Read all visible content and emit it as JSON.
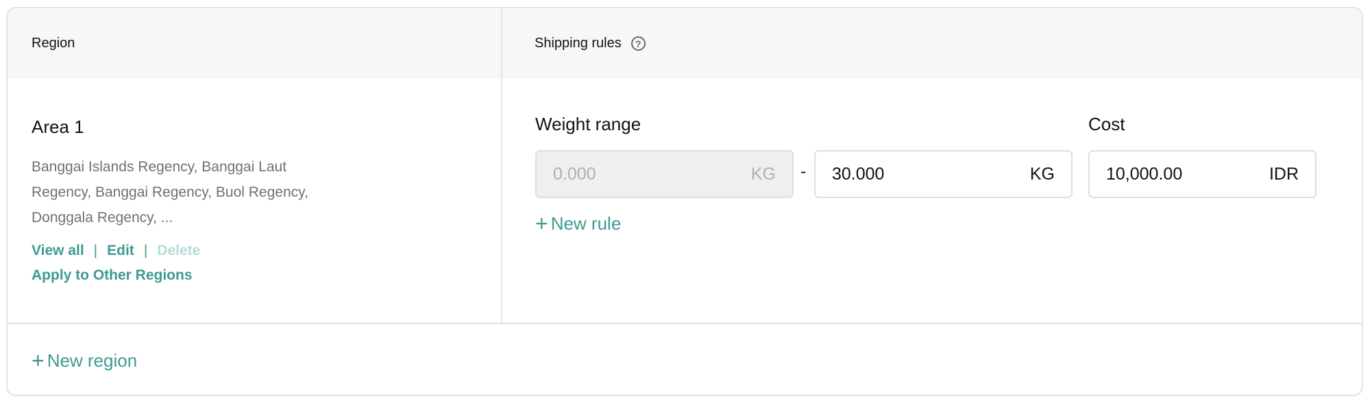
{
  "header": {
    "region": "Region",
    "shipping_rules": "Shipping rules",
    "help_icon": "question-circle-icon"
  },
  "region": {
    "title": "Area 1",
    "description": "Banggai Islands Regency, Banggai Laut Regency, Banggai Regency, Buol Regency, Donggala Regency, ...",
    "view_all": "View all",
    "separator": "|",
    "edit": "Edit",
    "delete": "Delete",
    "apply": "Apply to Other Regions"
  },
  "rules": {
    "weight_label": "Weight range",
    "cost_label": "Cost",
    "dash": "-",
    "min_weight": "0.000",
    "max_weight": "30.000",
    "weight_unit": "KG",
    "cost": "10,000.00",
    "currency": "IDR",
    "new_rule": "New rule"
  },
  "footer": {
    "new_region": "New region",
    "plus": "+"
  },
  "colors": {
    "accent": "#3d9a92",
    "header_bg": "#f7f7f7",
    "disabled_bg": "#efefef"
  }
}
